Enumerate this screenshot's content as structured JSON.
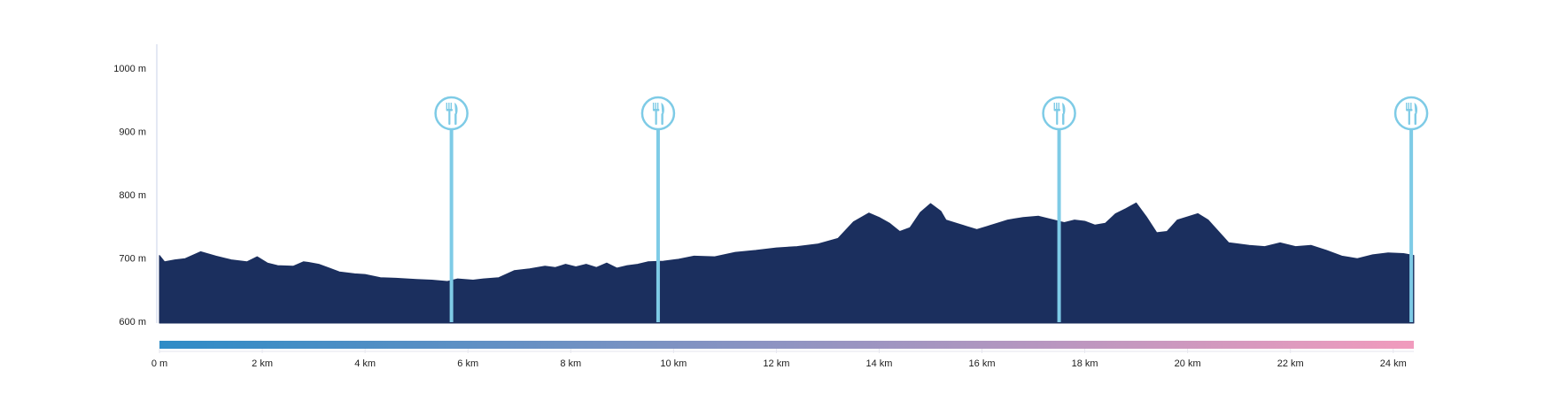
{
  "chart_data": {
    "type": "area",
    "title": "",
    "xlabel": "",
    "ylabel": "",
    "xlim": [
      0,
      24.4
    ],
    "ylim": [
      600,
      1000
    ],
    "grid": false,
    "y_ticks": [
      {
        "value": 1000,
        "label": "1000 m"
      },
      {
        "value": 900,
        "label": "900 m"
      },
      {
        "value": 800,
        "label": "800 m"
      },
      {
        "value": 700,
        "label": "700 m"
      },
      {
        "value": 600,
        "label": "600 m"
      }
    ],
    "x_ticks": [
      {
        "value": 0,
        "label": "0 m"
      },
      {
        "value": 2,
        "label": "2 km"
      },
      {
        "value": 4,
        "label": "4 km"
      },
      {
        "value": 6,
        "label": "6 km"
      },
      {
        "value": 8,
        "label": "8 km"
      },
      {
        "value": 10,
        "label": "10 km"
      },
      {
        "value": 12,
        "label": "12 km"
      },
      {
        "value": 14,
        "label": "14 km"
      },
      {
        "value": 16,
        "label": "16 km"
      },
      {
        "value": 18,
        "label": "18 km"
      },
      {
        "value": 20,
        "label": "20 km"
      },
      {
        "value": 22,
        "label": "22 km"
      },
      {
        "value": 24,
        "label": "24 km"
      }
    ],
    "series": [
      {
        "x": [
          0,
          0.1,
          0.3,
          0.5,
          0.8,
          1.1,
          1.4,
          1.7,
          1.9,
          2.1,
          2.3,
          2.6,
          2.8,
          2.9,
          3.1,
          3.3,
          3.5,
          3.8,
          4.0,
          4.3,
          4.6,
          5.0,
          5.3,
          5.6,
          5.8,
          6.1,
          6.3,
          6.6,
          6.9,
          7.2,
          7.5,
          7.7,
          7.9,
          8.1,
          8.3,
          8.5,
          8.7,
          8.9,
          9.1,
          9.3,
          9.5,
          9.8,
          10.1,
          10.4,
          10.8,
          11.2,
          11.6,
          12.0,
          12.4,
          12.8,
          13.2,
          13.5,
          13.8,
          14.0,
          14.2,
          14.4,
          14.6,
          14.8,
          15.0,
          15.2,
          15.3,
          15.5,
          15.7,
          15.9,
          16.1,
          16.3,
          16.5,
          16.8,
          17.1,
          17.4,
          17.6,
          17.8,
          18.0,
          18.2,
          18.4,
          18.6,
          18.8,
          19.0,
          19.2,
          19.4,
          19.6,
          19.8,
          20.0,
          20.2,
          20.4,
          20.6,
          20.8,
          21.2,
          21.5,
          21.8,
          22.1,
          22.4,
          22.7,
          23.0,
          23.3,
          23.6,
          23.9,
          24.2,
          24.4
        ],
        "y": [
          704,
          694,
          697,
          699,
          710,
          703,
          697,
          694,
          702,
          692,
          688,
          687,
          694,
          693,
          690,
          684,
          678,
          675,
          674,
          669,
          668,
          666,
          665,
          663,
          667,
          665,
          667,
          669,
          680,
          683,
          687,
          685,
          690,
          686,
          690,
          685,
          692,
          684,
          688,
          690,
          694,
          695,
          698,
          703,
          702,
          709,
          712,
          716,
          718,
          722,
          731,
          757,
          771,
          764,
          755,
          742,
          748,
          772,
          786,
          774,
          760,
          755,
          750,
          745,
          750,
          755,
          760,
          764,
          766,
          760,
          756,
          760,
          758,
          752,
          755,
          770,
          778,
          787,
          765,
          740,
          742,
          760,
          765,
          770,
          760,
          742,
          724,
          720,
          718,
          724,
          718,
          720,
          712,
          703,
          699,
          705,
          708,
          707,
          704
        ]
      }
    ],
    "markers": [
      {
        "x": 5.68,
        "icon": "fork-knife-icon"
      },
      {
        "x": 9.7,
        "icon": "fork-knife-icon"
      },
      {
        "x": 17.5,
        "icon": "fork-knife-icon"
      },
      {
        "x": 24.35,
        "icon": "fork-knife-icon"
      }
    ],
    "colors": {
      "area": "#1b2f5e",
      "marker": "#7ecbe6",
      "axis": "#c9d0ea",
      "gradient_start": "#2e8cc6",
      "gradient_end": "#f19bbd"
    }
  }
}
